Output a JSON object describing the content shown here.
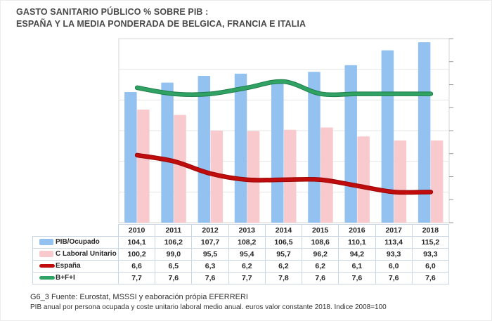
{
  "header": {
    "title_line1": "GASTO SANITARIO PÚBLICO % SOBRE PIB :",
    "title_line2": "ESPAÑA Y LA MEDIA PONDERADA DE BELGICA, FRANCIA E ITALIA"
  },
  "footer": {
    "line1": "G6_3  Fuente: Eurostat, MSSSI  y eaboración própia EFERRERI",
    "line2": "PIB anual por persona ocupada y coste unitario laboral medio anual. euros valor constante 2018. Indice 2008=100"
  },
  "colors": {
    "bar_blue": "#93C2F0",
    "bar_pink": "#F9CACD",
    "line_red": "#C00C0C",
    "line_red_dark": "#9A0606",
    "line_green": "#2FA264",
    "line_green_dark": "#1E7E49",
    "gridline": "#E4E4E4",
    "plot_border": "#D4D4D4",
    "tick": "#999999",
    "table_border": "#CBD6E4",
    "title_text": "#4A4A4A"
  },
  "chart_data": {
    "type": "combo",
    "title": "GASTO SANITARIO PÚBLICO % SOBRE PIB : ESPAÑA Y LA MEDIA PONDERADA DE BELGICA, FRANCIA E ITALIA",
    "categories": [
      "2010",
      "2011",
      "2012",
      "2013",
      "2014",
      "2015",
      "2016",
      "2017",
      "2018"
    ],
    "series": [
      {
        "name": "PIB/Ocupado",
        "type": "bar",
        "axis": "index",
        "color": "#93C2F0",
        "values": [
          104.1,
          106.2,
          107.7,
          108.2,
          106.5,
          108.6,
          110.1,
          113.4,
          115.2
        ]
      },
      {
        "name": "C Laboral Unitario",
        "type": "bar",
        "axis": "index",
        "color": "#F9CACD",
        "values": [
          100.2,
          99.0,
          95.5,
          95.4,
          95.7,
          96.2,
          94.2,
          93.3,
          93.3
        ]
      },
      {
        "name": "España",
        "type": "line",
        "axis": "pct",
        "color": "#C00C0C",
        "values": [
          6.6,
          6.5,
          6.3,
          6.2,
          6.2,
          6.2,
          6.1,
          6.0,
          6.0
        ]
      },
      {
        "name": "B+F+I",
        "type": "line",
        "axis": "pct",
        "color": "#2FA264",
        "values": [
          7.7,
          7.6,
          7.6,
          7.7,
          7.8,
          7.6,
          7.6,
          7.6,
          7.6
        ]
      }
    ],
    "axes": {
      "index": {
        "min": 75,
        "max": 116,
        "label": "",
        "ticks_visible": false
      },
      "pct": {
        "min": 5.5,
        "max": 8.5,
        "label": "",
        "ticks_visible": true
      }
    },
    "layout": {
      "gridline_intervals": 6,
      "right_tick_intervals": 8,
      "grid_on": true,
      "legend_position": "table-left",
      "decimal_separator": ","
    }
  }
}
